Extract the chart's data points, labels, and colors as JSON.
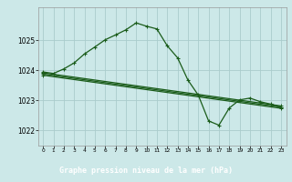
{
  "bg_color": "#cce8e8",
  "grid_color": "#aacccc",
  "line_color": "#1a5c1a",
  "title": "Graphe pression niveau de la mer (hPa)",
  "xlim": [
    -0.5,
    23.5
  ],
  "ylim": [
    1021.5,
    1026.1
  ],
  "yticks": [
    1022,
    1023,
    1024,
    1025
  ],
  "xticks": [
    0,
    1,
    2,
    3,
    4,
    5,
    6,
    7,
    8,
    9,
    10,
    11,
    12,
    13,
    14,
    15,
    16,
    17,
    18,
    19,
    20,
    21,
    22,
    23
  ],
  "xlabel_bg": "#2d6e2d",
  "xlabel_fg": "#ffffff",
  "series1_x": [
    0,
    1,
    2,
    3,
    4,
    5,
    6,
    7,
    8,
    9,
    10,
    11,
    12,
    13,
    14,
    15,
    16,
    17,
    18,
    19,
    20,
    21,
    22,
    23
  ],
  "series1_y": [
    1023.95,
    1023.9,
    1024.05,
    1024.25,
    1024.55,
    1024.78,
    1025.02,
    1025.18,
    1025.35,
    1025.58,
    1025.47,
    1025.38,
    1024.82,
    1024.42,
    1023.68,
    1023.18,
    1022.32,
    1022.18,
    1022.75,
    1023.02,
    1023.08,
    1022.96,
    1022.88,
    1022.78
  ],
  "series2_x": [
    0,
    23
  ],
  "series2_y": [
    1023.92,
    1022.82
  ],
  "series3_x": [
    0,
    23
  ],
  "series3_y": [
    1023.88,
    1022.78
  ],
  "series4_x": [
    0,
    23
  ],
  "series4_y": [
    1023.84,
    1022.74
  ]
}
